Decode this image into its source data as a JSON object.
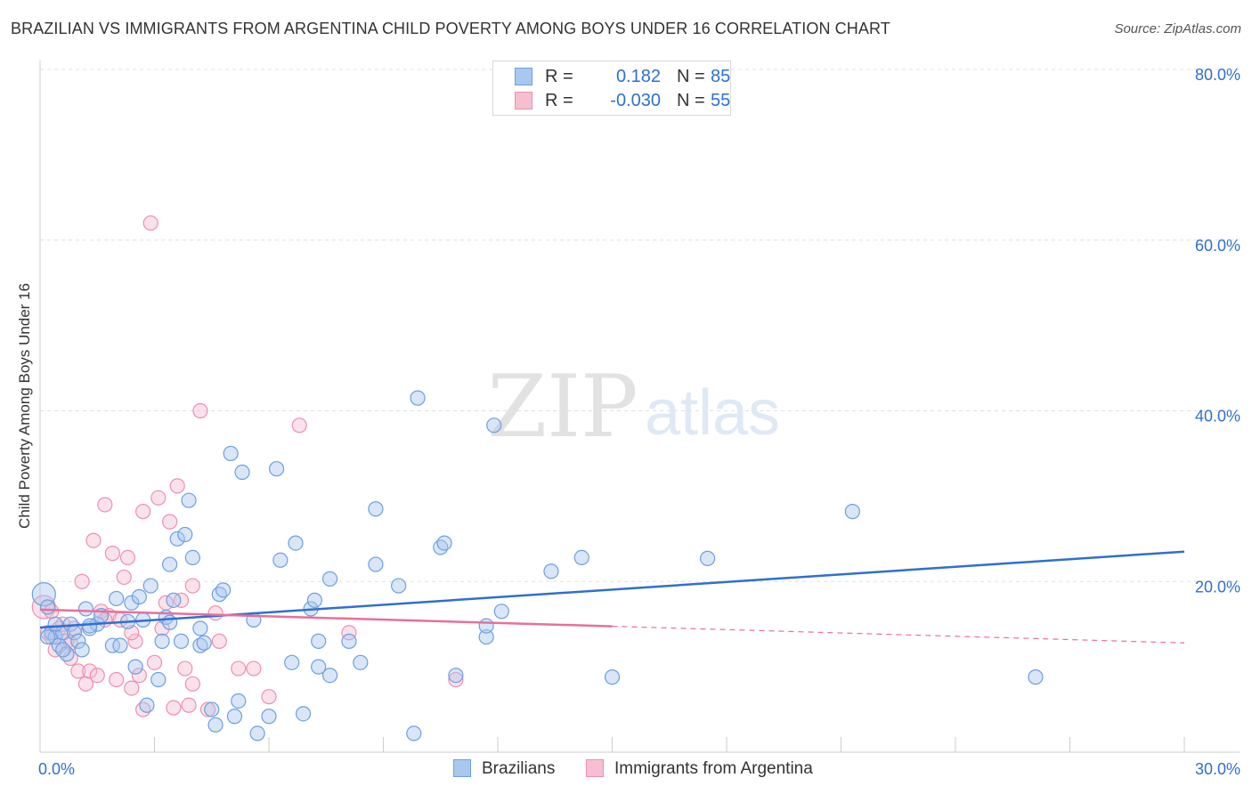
{
  "header": {
    "title": "BRAZILIAN VS IMMIGRANTS FROM ARGENTINA CHILD POVERTY AMONG BOYS UNDER 16 CORRELATION CHART",
    "source": "Source: ZipAtlas.com"
  },
  "watermark": {
    "zip": "ZIP",
    "atlas": "atlas"
  },
  "legend_top": {
    "rows": [
      {
        "r_label": "R =",
        "r_value": "0.182",
        "n_label": "N =",
        "n_value": "85"
      },
      {
        "r_label": "R =",
        "r_value": "-0.030",
        "n_label": "N =",
        "n_value": "55"
      }
    ]
  },
  "legend_bottom": {
    "series": [
      "Brazilians",
      "Immigrants from Argentina"
    ]
  },
  "colors": {
    "blue_fill": "#a9c8ef",
    "blue_stroke": "#6d9fe0",
    "blue_line": "#2f6fd0",
    "pink_fill": "#f6bfd0",
    "pink_stroke": "#ec8fb0",
    "pink_line": "#e86f9b",
    "grid": "#e0e0e0",
    "tick_text": "#2f6fd0"
  },
  "chart_data": {
    "type": "scatter",
    "title": "BRAZILIAN VS IMMIGRANTS FROM ARGENTINA CHILD POVERTY AMONG BOYS UNDER 16 CORRELATION CHART",
    "xlabel": "",
    "ylabel": "Child Poverty Among Boys Under 16",
    "xlim": [
      0,
      30
    ],
    "ylim": [
      0,
      80
    ],
    "x_tick_labels": [
      "0.0%",
      "30.0%"
    ],
    "y_ticks": [
      20,
      40,
      60,
      80
    ],
    "y_tick_labels": [
      "20.0%",
      "40.0%",
      "60.0%",
      "80.0%"
    ],
    "grid": true,
    "series": [
      {
        "name": "Brazilians",
        "r": 0.182,
        "n": 85,
        "trend": {
          "x": [
            0,
            30
          ],
          "y": [
            14.6,
            23.5
          ],
          "dashed_from": null
        },
        "points": [
          [
            0.1,
            18.5
          ],
          [
            0.2,
            17.0
          ],
          [
            0.3,
            14.0
          ],
          [
            0.4,
            13.5
          ],
          [
            0.5,
            12.5
          ],
          [
            0.6,
            14.0
          ],
          [
            0.7,
            11.5
          ],
          [
            0.8,
            15.0
          ],
          [
            0.9,
            14.0
          ],
          [
            1.0,
            13.0
          ],
          [
            1.1,
            12.0
          ],
          [
            1.2,
            16.8
          ],
          [
            1.3,
            14.5
          ],
          [
            1.5,
            15.0
          ],
          [
            1.6,
            16.0
          ],
          [
            1.9,
            12.5
          ],
          [
            2.0,
            18.0
          ],
          [
            2.1,
            12.5
          ],
          [
            2.3,
            15.3
          ],
          [
            2.4,
            17.5
          ],
          [
            2.5,
            10.0
          ],
          [
            2.6,
            18.2
          ],
          [
            2.7,
            15.5
          ],
          [
            2.8,
            5.5
          ],
          [
            2.9,
            19.5
          ],
          [
            3.1,
            8.5
          ],
          [
            3.2,
            13.0
          ],
          [
            3.3,
            15.8
          ],
          [
            3.4,
            22.0
          ],
          [
            3.5,
            17.8
          ],
          [
            3.6,
            25.0
          ],
          [
            3.7,
            13.0
          ],
          [
            3.8,
            25.5
          ],
          [
            3.9,
            29.5
          ],
          [
            4.0,
            22.8
          ],
          [
            4.2,
            12.5
          ],
          [
            4.3,
            12.8
          ],
          [
            4.5,
            5.0
          ],
          [
            4.6,
            3.2
          ],
          [
            4.7,
            18.5
          ],
          [
            4.8,
            19.0
          ],
          [
            5.0,
            35.0
          ],
          [
            5.1,
            4.2
          ],
          [
            5.2,
            6.0
          ],
          [
            5.3,
            32.8
          ],
          [
            5.6,
            15.5
          ],
          [
            5.7,
            2.2
          ],
          [
            6.0,
            4.2
          ],
          [
            6.2,
            33.2
          ],
          [
            6.3,
            22.5
          ],
          [
            6.6,
            10.5
          ],
          [
            6.7,
            24.5
          ],
          [
            6.9,
            4.5
          ],
          [
            7.1,
            16.8
          ],
          [
            7.2,
            17.8
          ],
          [
            7.3,
            10.0
          ],
          [
            7.3,
            13.0
          ],
          [
            7.6,
            9.0
          ],
          [
            7.6,
            20.3
          ],
          [
            8.1,
            13.0
          ],
          [
            8.4,
            10.5
          ],
          [
            8.8,
            22.0
          ],
          [
            8.8,
            28.5
          ],
          [
            9.4,
            19.5
          ],
          [
            9.8,
            2.2
          ],
          [
            9.9,
            41.5
          ],
          [
            10.5,
            24.0
          ],
          [
            10.6,
            24.5
          ],
          [
            10.9,
            9.0
          ],
          [
            11.7,
            13.5
          ],
          [
            11.7,
            14.8
          ],
          [
            11.9,
            38.3
          ],
          [
            12.1,
            16.5
          ],
          [
            13.4,
            21.2
          ],
          [
            14.2,
            22.8
          ],
          [
            15.0,
            8.8
          ],
          [
            17.5,
            22.7
          ],
          [
            21.3,
            28.2
          ],
          [
            26.1,
            8.8
          ],
          [
            0.2,
            13.5
          ],
          [
            0.4,
            15.0
          ],
          [
            0.6,
            12.0
          ],
          [
            1.3,
            14.8
          ],
          [
            3.4,
            15.2
          ],
          [
            4.2,
            14.5
          ]
        ]
      },
      {
        "name": "Immigrants from Argentina",
        "r": -0.03,
        "n": 55,
        "trend": {
          "x": [
            0,
            30
          ],
          "y": [
            16.7,
            12.8
          ],
          "dashed_from": 15
        },
        "points": [
          [
            0.1,
            17.0
          ],
          [
            0.2,
            14.0
          ],
          [
            0.3,
            13.5
          ],
          [
            0.4,
            12.0
          ],
          [
            0.5,
            14.5
          ],
          [
            0.6,
            15.0
          ],
          [
            0.7,
            13.0
          ],
          [
            0.8,
            11.0
          ],
          [
            0.9,
            14.5
          ],
          [
            1.0,
            9.5
          ],
          [
            1.1,
            20.0
          ],
          [
            1.2,
            8.0
          ],
          [
            1.3,
            9.5
          ],
          [
            1.4,
            24.8
          ],
          [
            1.5,
            9.0
          ],
          [
            1.6,
            16.5
          ],
          [
            1.7,
            29.0
          ],
          [
            1.8,
            16.0
          ],
          [
            1.9,
            23.3
          ],
          [
            2.0,
            8.5
          ],
          [
            2.1,
            15.5
          ],
          [
            2.2,
            20.5
          ],
          [
            2.3,
            22.8
          ],
          [
            2.4,
            7.5
          ],
          [
            2.5,
            13.0
          ],
          [
            2.6,
            9.0
          ],
          [
            2.7,
            5.0
          ],
          [
            2.7,
            28.2
          ],
          [
            2.9,
            62.0
          ],
          [
            3.0,
            10.5
          ],
          [
            3.1,
            29.8
          ],
          [
            3.2,
            14.5
          ],
          [
            3.3,
            17.5
          ],
          [
            3.4,
            27.0
          ],
          [
            3.5,
            5.2
          ],
          [
            3.6,
            31.2
          ],
          [
            3.7,
            17.8
          ],
          [
            3.8,
            9.8
          ],
          [
            3.9,
            5.5
          ],
          [
            4.0,
            8.0
          ],
          [
            4.0,
            19.5
          ],
          [
            4.2,
            40.0
          ],
          [
            4.4,
            5.0
          ],
          [
            4.6,
            16.3
          ],
          [
            4.7,
            13.0
          ],
          [
            5.2,
            9.8
          ],
          [
            5.6,
            9.8
          ],
          [
            6.0,
            6.5
          ],
          [
            6.8,
            38.3
          ],
          [
            8.1,
            14.0
          ],
          [
            10.9,
            8.5
          ],
          [
            0.3,
            16.5
          ],
          [
            0.8,
            12.8
          ],
          [
            1.7,
            15.5
          ],
          [
            2.4,
            14.0
          ]
        ]
      }
    ]
  }
}
